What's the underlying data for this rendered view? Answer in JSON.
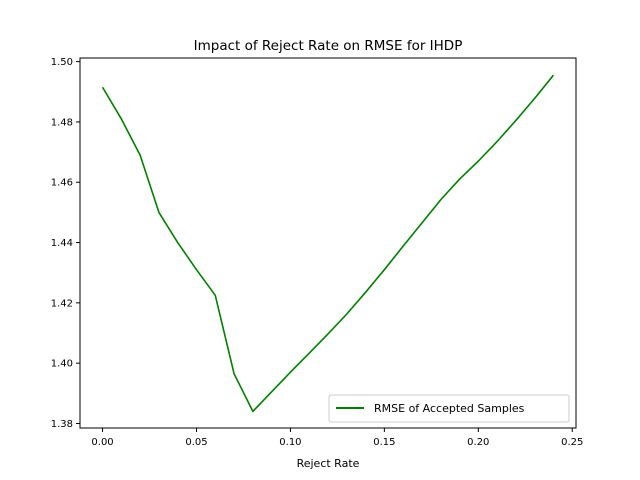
{
  "chart_data": {
    "type": "line",
    "title": "Impact of Reject Rate on RMSE for IHDP",
    "xlabel": "Reject Rate",
    "ylabel": "",
    "xlim": [
      -0.012,
      0.252
    ],
    "ylim": [
      1.3785,
      1.5012
    ],
    "x_ticks": [
      0.0,
      0.05,
      0.1,
      0.15,
      0.2,
      0.25
    ],
    "x_tick_labels": [
      "0.00",
      "0.05",
      "0.10",
      "0.15",
      "0.20",
      "0.25"
    ],
    "y_ticks": [
      1.38,
      1.4,
      1.42,
      1.44,
      1.46,
      1.48,
      1.5
    ],
    "y_tick_labels": [
      "1.38",
      "1.40",
      "1.42",
      "1.44",
      "1.46",
      "1.48",
      "1.50"
    ],
    "grid": false,
    "legend_position": "lower-right",
    "series": [
      {
        "name": "RMSE of Accepted Samples",
        "color": "#008000",
        "x": [
          0.0,
          0.01,
          0.02,
          0.03,
          0.04,
          0.05,
          0.06,
          0.07,
          0.08,
          0.09,
          0.1,
          0.11,
          0.12,
          0.13,
          0.14,
          0.15,
          0.16,
          0.17,
          0.18,
          0.19,
          0.2,
          0.21,
          0.22,
          0.23,
          0.24
        ],
        "y": [
          1.4915,
          1.481,
          1.469,
          1.45,
          1.44,
          1.431,
          1.4225,
          1.3965,
          1.384,
          1.3905,
          1.397,
          1.4033,
          1.4097,
          1.4163,
          1.4235,
          1.431,
          1.4388,
          1.4465,
          1.4542,
          1.461,
          1.467,
          1.4735,
          1.4805,
          1.4878,
          1.4955
        ]
      }
    ]
  }
}
